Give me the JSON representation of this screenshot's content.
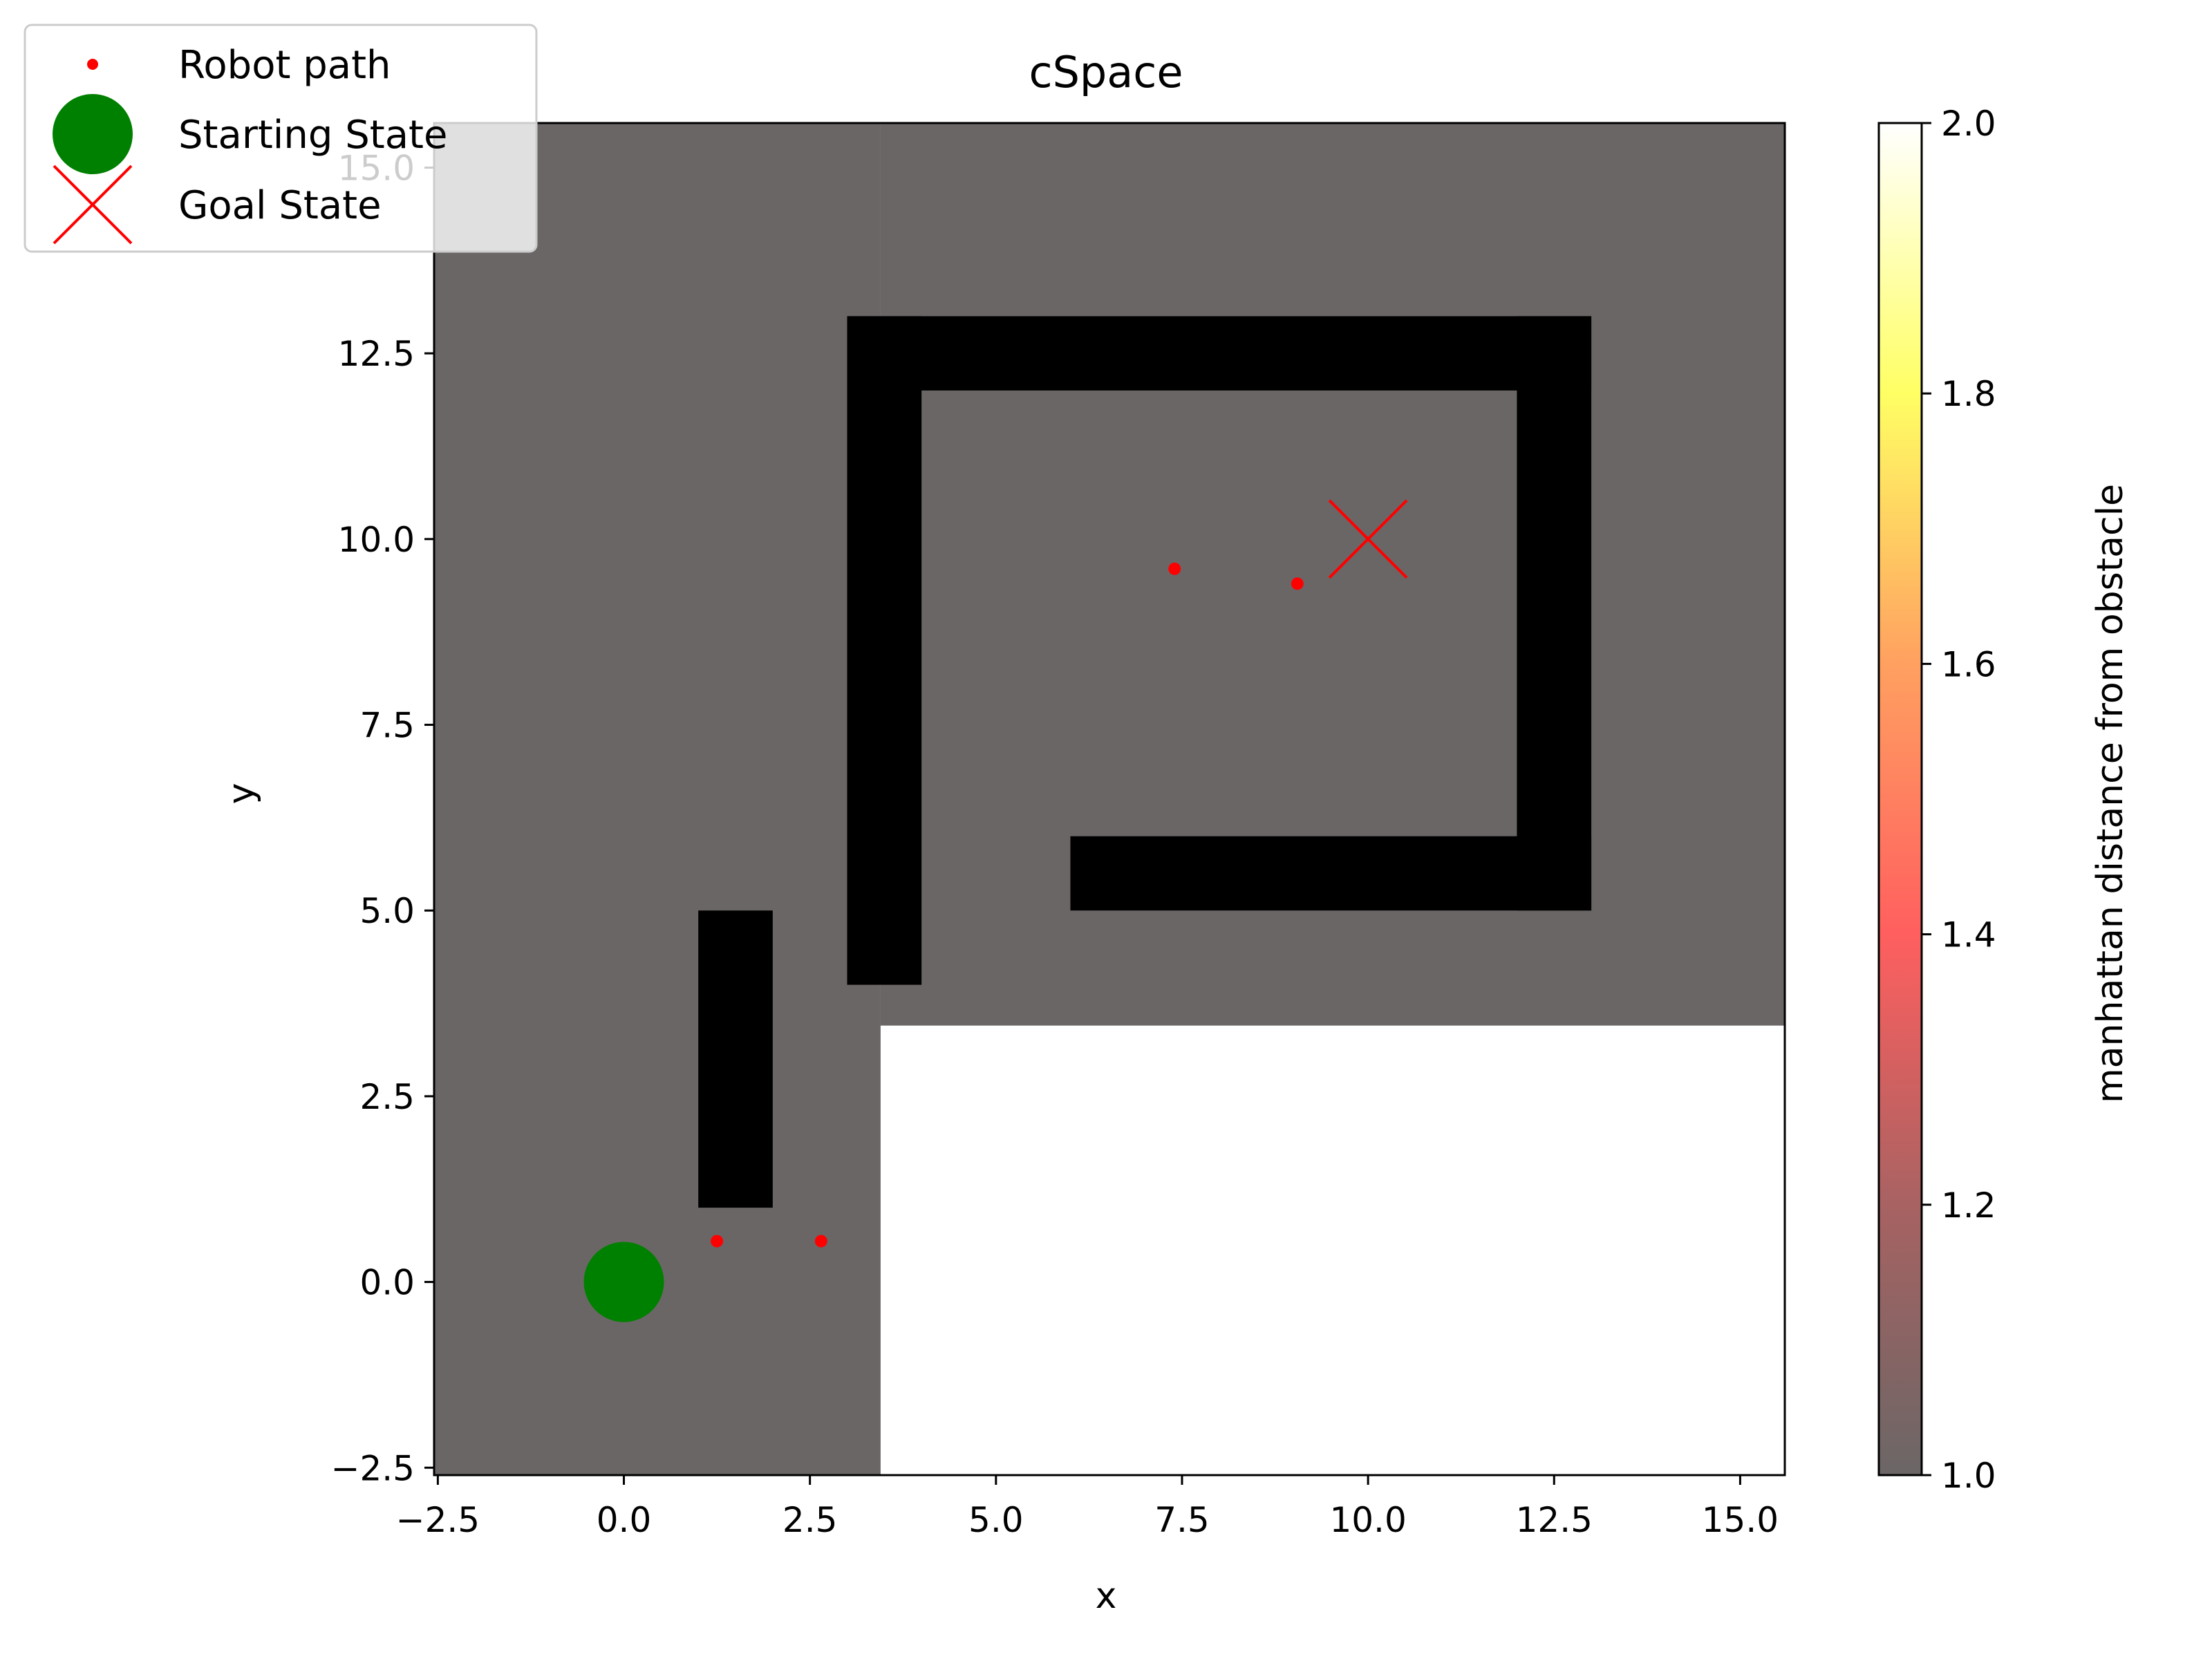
{
  "chart_data": {
    "type": "scatter",
    "title": "cSpace",
    "xlabel": "x",
    "ylabel": "y",
    "xlim": [
      -2.55,
      15.6
    ],
    "ylim": [
      -2.6,
      15.6
    ],
    "xticks": [
      -2.5,
      0.0,
      2.5,
      5.0,
      7.5,
      10.0,
      12.5,
      15.0
    ],
    "xtick_labels": [
      "−2.5",
      "0.0",
      "2.5",
      "5.0",
      "7.5",
      "10.0",
      "12.5",
      "15.0"
    ],
    "yticks": [
      -2.5,
      0.0,
      2.5,
      5.0,
      7.5,
      10.0,
      12.5,
      15.0
    ],
    "ytick_labels": [
      "−2.5",
      "0.0",
      "2.5",
      "5.0",
      "7.5",
      "10.0",
      "12.5",
      "15.0"
    ],
    "grid": false,
    "legend_position": "top-left",
    "background_regions": [
      {
        "x": [
          -2.55,
          3.45
        ],
        "y": [
          -2.6,
          15.6
        ],
        "value": 1.0
      },
      {
        "x": [
          3.45,
          15.6
        ],
        "y": [
          3.45,
          15.6
        ],
        "value": 1.0
      },
      {
        "x": [
          3.45,
          15.6
        ],
        "y": [
          -2.6,
          3.45
        ],
        "value": 2.0
      }
    ],
    "obstacles": [
      {
        "x": [
          1.0,
          2.0
        ],
        "y": [
          1.0,
          5.0
        ]
      },
      {
        "x": [
          3.0,
          4.0
        ],
        "y": [
          4.0,
          13.0
        ]
      },
      {
        "x": [
          3.0,
          13.0
        ],
        "y": [
          12.0,
          13.0
        ]
      },
      {
        "x": [
          12.0,
          13.0
        ],
        "y": [
          5.0,
          13.0
        ]
      },
      {
        "x": [
          6.0,
          13.0
        ],
        "y": [
          5.0,
          6.0
        ]
      }
    ],
    "series": [
      {
        "name": "Robot path",
        "marker": "small-dot",
        "color": "#ff0000",
        "x": [
          1.25,
          2.65,
          7.4,
          9.05
        ],
        "y": [
          0.55,
          0.55,
          9.6,
          9.4
        ]
      },
      {
        "name": "Starting State",
        "marker": "large-circle",
        "color": "#008000",
        "x": [
          0.0
        ],
        "y": [
          0.0
        ]
      },
      {
        "name": "Goal State",
        "marker": "x",
        "color": "#ff0000",
        "x": [
          10.0
        ],
        "y": [
          10.0
        ]
      }
    ],
    "colorbar": {
      "label": "manhattan distance from obstacle",
      "range": [
        1.0,
        2.0
      ],
      "ticks": [
        1.0,
        1.2,
        1.4,
        1.6,
        1.8,
        2.0
      ],
      "tick_labels": [
        "1.0",
        "1.2",
        "1.4",
        "1.6",
        "1.8",
        "2.0"
      ],
      "colormap": "hot",
      "alpha": 0.6
    }
  }
}
